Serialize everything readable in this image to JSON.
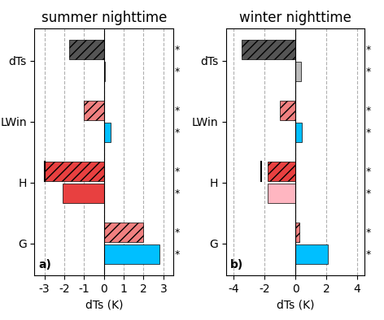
{
  "chart_data": [
    {
      "type": "bar",
      "orientation": "horizontal",
      "title": "summer nighttime",
      "x_label": "dTs (K)",
      "panel_label": "a)",
      "categories": [
        "G",
        "H",
        "LWin",
        "dTs"
      ],
      "xlim": [
        -3.5,
        3.5
      ],
      "xticks": [
        -3,
        -2,
        -1,
        0,
        1,
        2,
        3
      ],
      "grid": true,
      "series": [
        {
          "values": [
            2.0,
            -3.0,
            -1.0,
            -1.75
          ],
          "colors": [
            "#F08080",
            "#E84040",
            "#F08080",
            "#555555"
          ],
          "medians": [
            null,
            -3.0,
            null,
            null
          ],
          "annotations": [
            "*",
            "*",
            "*",
            "*"
          ]
        },
        {
          "values": [
            2.8,
            -2.1,
            0.35,
            0.05
          ],
          "colors": [
            "#00BFFF",
            "#E84040",
            "#00BFFF",
            "#BBBBBB"
          ],
          "annotations": [
            "*",
            "*",
            "*",
            "*"
          ]
        }
      ]
    },
    {
      "type": "bar",
      "orientation": "horizontal",
      "title": "winter nighttime",
      "x_label": "dTs (K)",
      "panel_label": "b)",
      "categories": [
        "G",
        "H",
        "LWin",
        "dTs"
      ],
      "xlim": [
        -4.5,
        4.5
      ],
      "xticks": [
        -4,
        -2,
        0,
        2,
        4
      ],
      "grid": true,
      "series": [
        {
          "values": [
            0.25,
            -1.8,
            -1.0,
            -3.5
          ],
          "colors": [
            "#F08080",
            "#E84040",
            "#F08080",
            "#555555"
          ],
          "medians": [
            null,
            -2.2,
            null,
            null
          ],
          "annotations": [
            "*",
            "*",
            "*",
            "*"
          ]
        },
        {
          "values": [
            2.1,
            -1.8,
            0.4,
            0.35
          ],
          "colors": [
            "#00BFFF",
            "#FFB6C1",
            "#00BFFF",
            "#BBBBBB"
          ],
          "annotations": [
            "*",
            "*",
            "*",
            "*"
          ]
        }
      ]
    }
  ]
}
